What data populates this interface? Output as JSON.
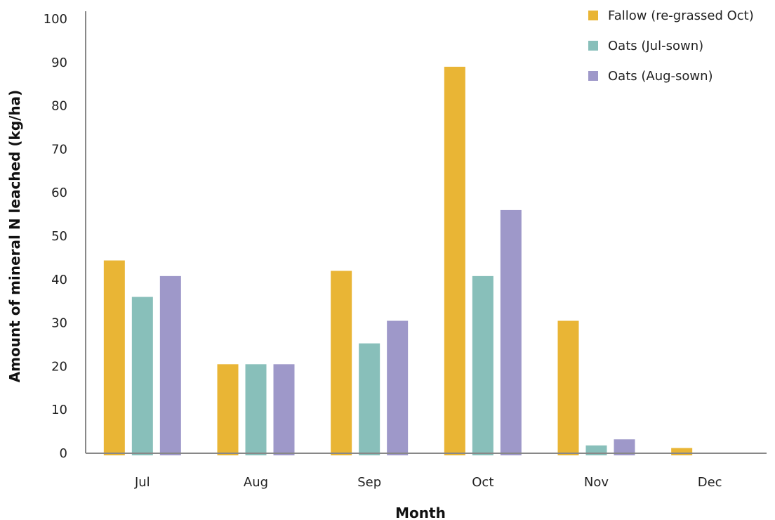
{
  "chart_data": {
    "type": "bar",
    "categories": [
      "Jul",
      "Aug",
      "Sep",
      "Oct",
      "Nov",
      "Dec"
    ],
    "series": [
      {
        "name": "Fallow (re-grassed Oct)",
        "color": "#E9B535",
        "values": [
          44.4,
          20.5,
          42,
          89,
          30.5,
          1.2
        ]
      },
      {
        "name": "Oats (Jul-sown)",
        "color": "#88BFBA",
        "values": [
          36,
          20.5,
          25.3,
          40.8,
          1.8,
          0
        ]
      },
      {
        "name": "Oats (Aug-sown)",
        "color": "#9E98C9",
        "values": [
          40.8,
          20.5,
          30.5,
          56,
          3.2,
          0
        ]
      }
    ],
    "xlabel": "Month",
    "ylabel": "Amount of mineral N leached (kg/ha)",
    "ylim": [
      0,
      100
    ],
    "yticks": [
      "0",
      "10",
      "20",
      "30",
      "40",
      "50",
      "60",
      "70",
      "80",
      "90",
      "100"
    ],
    "legend_position": "top-right",
    "grid": false
  }
}
